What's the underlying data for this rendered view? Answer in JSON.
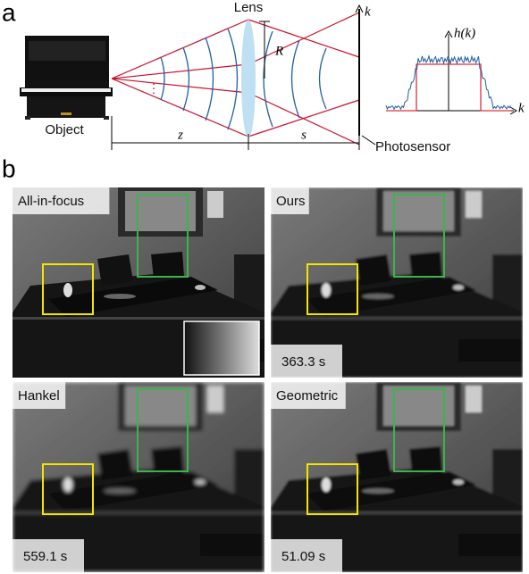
{
  "panel_a": {
    "label": "a",
    "lens": "Lens",
    "radius": "R",
    "sensor_axis": "k",
    "plot_ylabel": "h(k)",
    "plot_xlabel": "k",
    "object": "Object",
    "distance_z": "z",
    "distance_s": "s",
    "sensor": "Photosensor"
  },
  "panel_b": {
    "label": "b",
    "images": [
      {
        "title": "All-in-focus"
      },
      {
        "title": "Ours",
        "time": "363.3 s"
      },
      {
        "title": "Hankel",
        "time": "559.1 s"
      },
      {
        "title": "Geometric",
        "time": "51.09 s"
      }
    ]
  }
}
